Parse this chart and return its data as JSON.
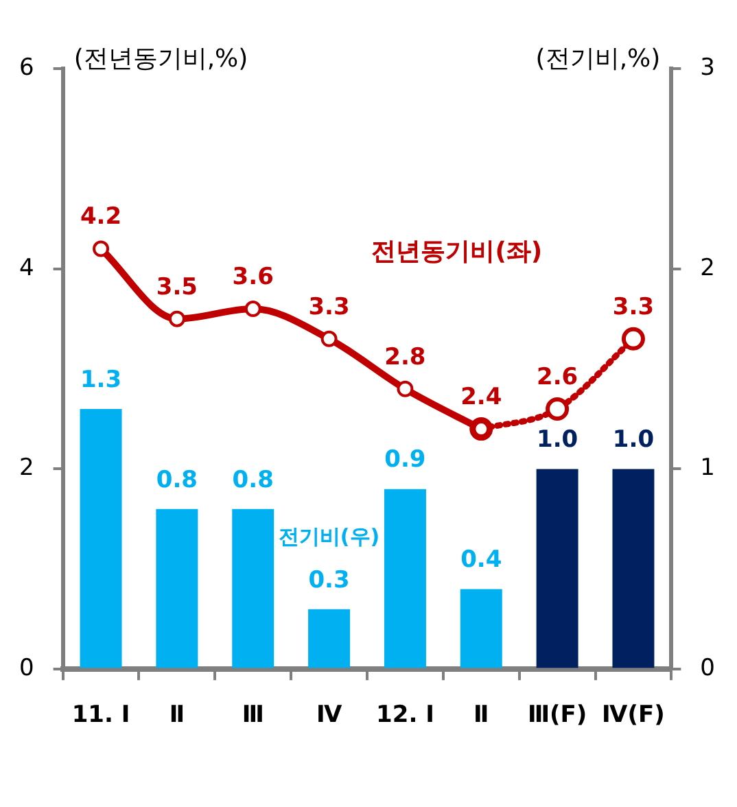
{
  "chart_data": {
    "type": "bar",
    "ylabel": "(전년동기비,%)",
    "y2label": "(전기비,%)",
    "categories": [
      "11. Ⅰ",
      "Ⅱ",
      "Ⅲ",
      "Ⅳ",
      "12. Ⅰ",
      "Ⅱ",
      "Ⅲ(F)",
      "Ⅳ(F)"
    ],
    "series": [
      {
        "name": "전기비(우)",
        "axis": "y2",
        "colors": [
          "#00b0f0",
          "#00b0f0",
          "#00b0f0",
          "#00b0f0",
          "#00b0f0",
          "#00b0f0",
          "#002060",
          "#002060"
        ],
        "values": [
          1.3,
          0.8,
          0.8,
          0.3,
          0.9,
          0.4,
          1.0,
          1.0
        ],
        "value_labels": [
          "1.3",
          "0.8",
          "0.8",
          "0.3",
          "0.9",
          "0.4",
          "1.0",
          "1.0"
        ]
      },
      {
        "name": "전년동기비(좌)",
        "type": "line",
        "color": "#c00000",
        "line_style": "solid",
        "values": [
          4.2,
          3.5,
          3.6,
          3.3,
          2.8,
          2.4,
          null,
          null
        ]
      },
      {
        "type": "line",
        "color": "#c00000",
        "line_style": "dotted",
        "values": [
          null,
          null,
          null,
          null,
          null,
          2.4,
          2.6,
          3.3
        ],
        "value_labels": [
          null,
          null,
          null,
          null,
          null,
          null,
          "2.6",
          "3.3"
        ]
      }
    ],
    "ylim": [
      0,
      6
    ],
    "yticks": [
      0,
      2,
      4,
      6
    ],
    "y2lim": [
      0,
      3
    ],
    "y2ticks": [
      0,
      1,
      2,
      3
    ],
    "data_labels": true,
    "marker": "circle",
    "grid": false,
    "legend": false
  }
}
